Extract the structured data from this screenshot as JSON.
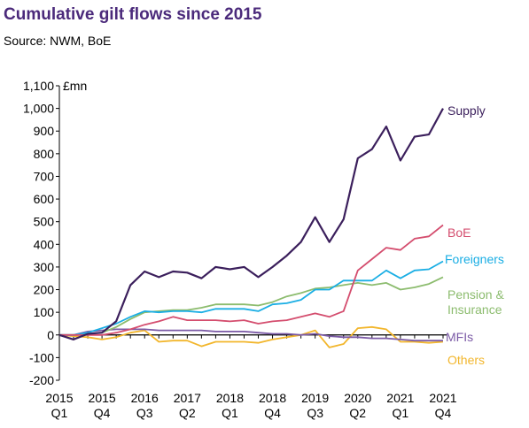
{
  "title": "Cumulative gilt flows since 2015",
  "source": "Source:  NWM, BoE",
  "chart_data": {
    "type": "line",
    "unit_label": "£mn",
    "ylim": [
      -200,
      1100
    ],
    "yticks": [
      -200,
      -100,
      0,
      100,
      200,
      300,
      400,
      500,
      600,
      700,
      800,
      900,
      1000,
      1100
    ],
    "ytick_labels": [
      "-200",
      "-100",
      "0",
      "100",
      "200",
      "300",
      "400",
      "500",
      "600",
      "700",
      "800",
      "900",
      "1,000",
      "1,100"
    ],
    "x_labels": [
      {
        "year": "2015",
        "quarter": "Q1"
      },
      {
        "year": "2015",
        "quarter": "Q4"
      },
      {
        "year": "2016",
        "quarter": "Q3"
      },
      {
        "year": "2017",
        "quarter": "Q2"
      },
      {
        "year": "2018",
        "quarter": "Q1"
      },
      {
        "year": "2018",
        "quarter": "Q4"
      },
      {
        "year": "2019",
        "quarter": "Q3"
      },
      {
        "year": "2020",
        "quarter": "Q2"
      },
      {
        "year": "2021",
        "quarter": "Q1"
      },
      {
        "year": "2021",
        "quarter": "Q4"
      }
    ],
    "grid": false,
    "legend": "inline labels at line ends",
    "series": [
      {
        "name": "Supply",
        "color": "#3b1f5c",
        "values": [
          0,
          -20,
          5,
          10,
          60,
          220,
          280,
          255,
          280,
          275,
          250,
          300,
          290,
          300,
          255,
          300,
          350,
          410,
          520,
          410,
          510,
          780,
          820,
          920,
          770,
          875,
          885,
          1000
        ]
      },
      {
        "name": "BoE",
        "color": "#d44d6e",
        "values": [
          0,
          0,
          0,
          0,
          10,
          25,
          45,
          60,
          80,
          65,
          65,
          65,
          60,
          65,
          50,
          60,
          65,
          80,
          95,
          80,
          105,
          285,
          335,
          385,
          375,
          425,
          435,
          485
        ]
      },
      {
        "name": "Foreigners",
        "color": "#1aaee4",
        "values": [
          0,
          0,
          10,
          30,
          50,
          80,
          105,
          100,
          105,
          105,
          100,
          115,
          115,
          115,
          105,
          135,
          140,
          155,
          200,
          200,
          240,
          240,
          240,
          285,
          250,
          285,
          290,
          325
        ]
      },
      {
        "name": "Pension & Insurance",
        "color": "#8cbc6e",
        "values": [
          0,
          0,
          5,
          10,
          35,
          70,
          100,
          105,
          110,
          110,
          120,
          135,
          135,
          135,
          130,
          145,
          170,
          185,
          205,
          210,
          220,
          230,
          220,
          230,
          200,
          210,
          225,
          255
        ]
      },
      {
        "name": "MFIs",
        "color": "#7b5aa6",
        "values": [
          0,
          0,
          15,
          20,
          25,
          25,
          25,
          20,
          20,
          20,
          20,
          15,
          15,
          15,
          10,
          5,
          5,
          0,
          5,
          -5,
          -10,
          -10,
          -15,
          -15,
          -20,
          -25,
          -25,
          -25
        ]
      },
      {
        "name": "Others",
        "color": "#f2b62c",
        "values": [
          0,
          -5,
          -10,
          -20,
          -10,
          10,
          20,
          -30,
          -25,
          -25,
          -50,
          -30,
          -30,
          -30,
          -35,
          -20,
          -10,
          0,
          20,
          -55,
          -40,
          30,
          35,
          25,
          -30,
          -30,
          -35,
          -30
        ]
      }
    ]
  }
}
